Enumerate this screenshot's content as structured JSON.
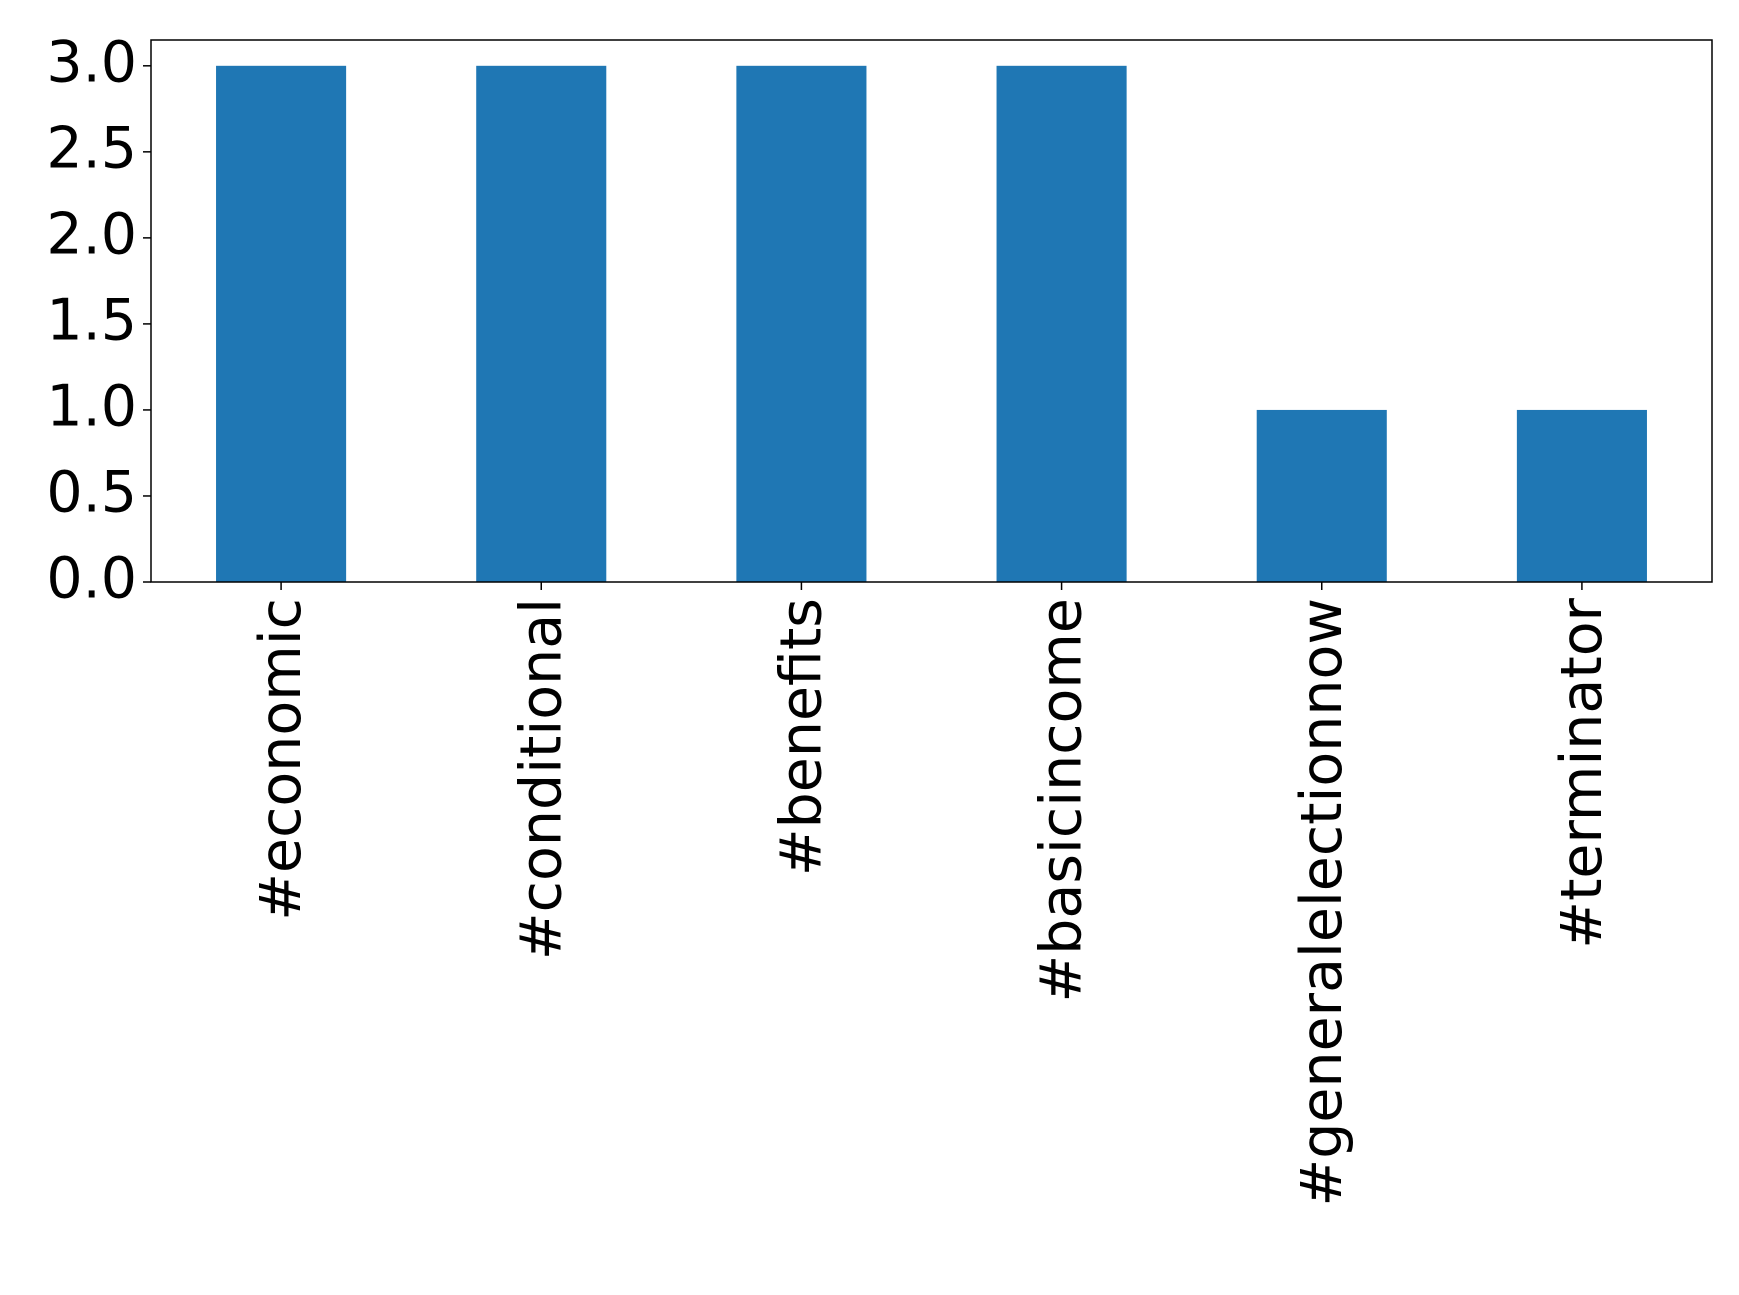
{
  "chart_data": {
    "type": "bar",
    "categories": [
      "#economic",
      "#conditional",
      "#benefits",
      "#basicincome",
      "#generalelectionnow",
      "#terminator"
    ],
    "values": [
      3,
      3,
      3,
      3,
      1,
      1
    ],
    "color": "#1f77b4",
    "ylim": [
      0,
      3.15
    ],
    "yticks": [
      {
        "value": 0,
        "label": "0.0"
      },
      {
        "value": 0.5,
        "label": "0.5"
      },
      {
        "value": 1,
        "label": "1.0"
      },
      {
        "value": 1.5,
        "label": "1.5"
      },
      {
        "value": 2,
        "label": "2.0"
      },
      {
        "value": 2.5,
        "label": "2.5"
      },
      {
        "value": 3,
        "label": "3.0"
      }
    ],
    "grid": false
  }
}
